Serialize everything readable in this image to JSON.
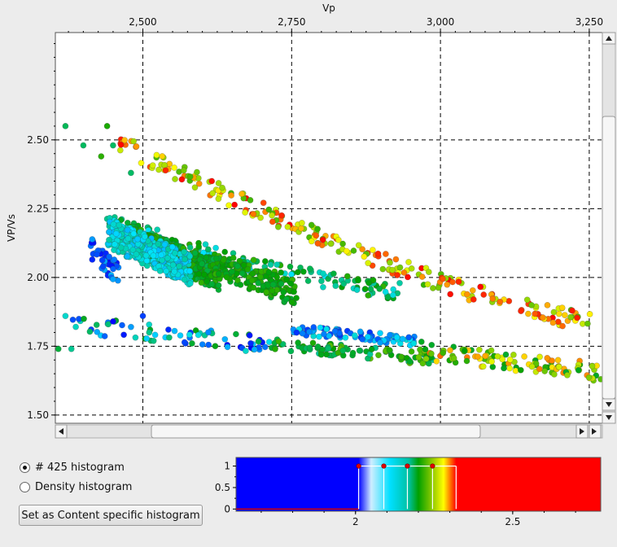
{
  "chart_data": [
    {
      "type": "scatter",
      "title": "",
      "xlabel": "Vp",
      "ylabel": "VP/Vs",
      "xlim": [
        2353,
        3272
      ],
      "ylim": [
        1.47,
        2.89
      ],
      "x_ticks": [
        2500,
        2750,
        3000,
        3250
      ],
      "x_tick_labels": [
        "2,500",
        "2,750",
        "3,000",
        "3,250"
      ],
      "y_ticks": [
        1.5,
        1.75,
        2.0,
        2.25,
        2.5
      ],
      "y_tick_labels": [
        "1.50",
        "1.75",
        "2.00",
        "2.25",
        "2.50"
      ],
      "grid": true,
      "color_scale": [
        "#0000ff",
        "#00e5ff",
        "#00a000",
        "#ffff00",
        "#ff0000"
      ],
      "clusters": [
        {
          "points": [
            [
              2370,
              2.55
            ],
            [
              2440,
              2.55
            ],
            [
              2430,
              2.44
            ],
            [
              2450,
              2.48
            ],
            [
              2480,
              2.38
            ],
            [
              2400,
              2.48
            ]
          ],
          "color_min": 0.4,
          "color_max": 0.55
        },
        {
          "band": "upper_trend",
          "x_start": 2460,
          "x_end": 3260,
          "y_start": 2.49,
          "y_end": 1.84,
          "spread": 0.035,
          "count": 240,
          "color_min": 0.55,
          "color_max": 1.0
        },
        {
          "band": "middle_trend",
          "x_start": 2440,
          "x_end": 2935,
          "y_start": 2.2,
          "y_end": 1.95,
          "spread": 0.03,
          "count": 150,
          "color_min": 0.25,
          "color_max": 0.55
        },
        {
          "region": "dense_cloud_green",
          "x_range": [
            2480,
            2630
          ],
          "y_range": [
            1.95,
            2.19
          ],
          "count": 420,
          "color_min": 0.42,
          "color_max": 0.55
        },
        {
          "region": "dense_cloud_green_tail",
          "x_range": [
            2620,
            2760
          ],
          "y_range": [
            1.89,
            2.1
          ],
          "count": 160,
          "color_min": 0.45,
          "color_max": 0.55
        },
        {
          "region": "dense_cloud_cyan",
          "x_range": [
            2440,
            2580
          ],
          "y_range": [
            1.97,
            2.22
          ],
          "count": 380,
          "color_min": 0.2,
          "color_max": 0.35
        },
        {
          "region": "blue_edge",
          "x_range": [
            2410,
            2460
          ],
          "y_range": [
            1.97,
            2.15
          ],
          "count": 40,
          "color_min": 0.0,
          "color_max": 0.2
        },
        {
          "region": "lower_left",
          "x_range": [
            2380,
            2720
          ],
          "y_range": [
            1.72,
            1.86
          ],
          "count": 70,
          "color_min": 0.0,
          "color_max": 0.5
        },
        {
          "region": "lower_mid_blue",
          "x_range": [
            2750,
            2960
          ],
          "y_range": [
            1.75,
            1.83
          ],
          "count": 90,
          "color_min": 0.05,
          "color_max": 0.3
        },
        {
          "region": "lower_mid_green",
          "x_range": [
            2720,
            2990
          ],
          "y_range": [
            1.68,
            1.78
          ],
          "count": 90,
          "color_min": 0.35,
          "color_max": 0.6
        },
        {
          "region": "lower_right",
          "x_range": [
            2960,
            3270
          ],
          "y_range": [
            1.62,
            1.77
          ],
          "count": 110,
          "color_min": 0.45,
          "color_max": 0.9
        },
        {
          "points": [
            [
              2370,
              1.86
            ],
            [
              2358,
              1.74
            ],
            [
              2380,
              1.74
            ],
            [
              2450,
              1.84
            ],
            [
              2500,
              1.86
            ],
            [
              2480,
              1.82
            ]
          ],
          "color_min": 0.0,
          "color_max": 0.5
        }
      ]
    },
    {
      "type": "bar",
      "title": "",
      "xlabel": "",
      "ylabel": "",
      "xlim": [
        1.62,
        2.78
      ],
      "ylim": [
        -0.05,
        1.2
      ],
      "x_ticks": [
        2,
        2.5
      ],
      "x_tick_labels": [
        "2",
        "2.5"
      ],
      "y_ticks": [
        0,
        0.5,
        1
      ],
      "y_tick_labels": [
        "0",
        "0.5",
        "1"
      ],
      "color_gradient": [
        {
          "value": 1.62,
          "color": "#0000ff"
        },
        {
          "value": 2.01,
          "color": "#0000ff"
        },
        {
          "value": 2.05,
          "color": "#cfeeff"
        },
        {
          "value": 2.11,
          "color": "#00e0ff"
        },
        {
          "value": 2.17,
          "color": "#00c0a0"
        },
        {
          "value": 2.2,
          "color": "#00a000"
        },
        {
          "value": 2.25,
          "color": "#a0d000"
        },
        {
          "value": 2.28,
          "color": "#ffff00"
        },
        {
          "value": 2.32,
          "color": "#ff0000"
        },
        {
          "value": 2.78,
          "color": "#ff0000"
        }
      ],
      "transfer_points": [
        [
          2.01,
          1.0
        ],
        [
          2.09,
          1.0
        ],
        [
          2.165,
          1.0
        ],
        [
          2.245,
          1.0
        ]
      ],
      "steps": [
        [
          2.01,
          1.0
        ],
        [
          2.09,
          1.0
        ],
        [
          2.165,
          1.0
        ],
        [
          2.245,
          1.0
        ],
        [
          2.32,
          1.0
        ]
      ]
    }
  ],
  "controls": {
    "radio_histogram": "# 425 histogram",
    "radio_density": "Density histogram",
    "set_button": "Set as Content specific histogram",
    "radio_selected": "histogram"
  }
}
